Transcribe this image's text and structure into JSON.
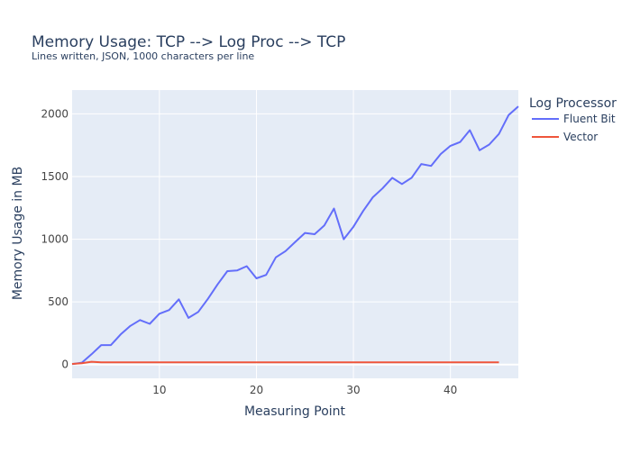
{
  "chart_data": {
    "type": "line",
    "title": "Memory Usage: TCP --> Log Proc --> TCP",
    "subtitle": "Lines written, JSON, 1000 characters per line",
    "xlabel": "Measuring Point",
    "ylabel": "Memory Usage in MB",
    "xlim": [
      1,
      47
    ],
    "ylim": [
      -110,
      2190
    ],
    "x_ticks": [
      10,
      20,
      30,
      40
    ],
    "y_ticks": [
      0,
      500,
      1000,
      1500,
      2000
    ],
    "grid": true,
    "legend": {
      "title": "Log Processor",
      "position": "top-right, outside plot"
    },
    "series": [
      {
        "name": "Fluent Bit",
        "color": "#636efa",
        "x": [
          1,
          2,
          3,
          4,
          5,
          6,
          7,
          8,
          9,
          10,
          11,
          12,
          13,
          14,
          15,
          16,
          17,
          18,
          19,
          20,
          21,
          22,
          23,
          24,
          25,
          26,
          27,
          28,
          29,
          30,
          31,
          32,
          33,
          34,
          35,
          36,
          37,
          38,
          39,
          40,
          41,
          42,
          43,
          44,
          45,
          46,
          47
        ],
        "values": [
          3,
          15,
          82,
          155,
          155,
          240,
          308,
          355,
          325,
          405,
          435,
          520,
          372,
          420,
          525,
          640,
          745,
          750,
          785,
          688,
          715,
          855,
          905,
          978,
          1050,
          1040,
          1110,
          1245,
          1000,
          1100,
          1225,
          1335,
          1405,
          1490,
          1440,
          1490,
          1600,
          1585,
          1680,
          1745,
          1775,
          1870,
          1710,
          1755,
          1840,
          1990,
          2060
        ]
      },
      {
        "name": "Vector",
        "color": "#ef553b",
        "x": [
          1,
          2,
          3,
          4,
          5,
          6,
          7,
          8,
          9,
          10,
          11,
          12,
          13,
          14,
          15,
          16,
          17,
          18,
          19,
          20,
          21,
          22,
          23,
          24,
          25,
          26,
          27,
          28,
          29,
          30,
          31,
          32,
          33,
          34,
          35,
          36,
          37,
          38,
          39,
          40,
          41,
          42,
          43,
          44,
          45
        ],
        "values": [
          5,
          10,
          22,
          17,
          17,
          17,
          17,
          17,
          17,
          17,
          17,
          17,
          17,
          17,
          17,
          17,
          17,
          17,
          17,
          17,
          17,
          17,
          17,
          17,
          17,
          17,
          17,
          17,
          17,
          17,
          17,
          17,
          17,
          17,
          17,
          17,
          17,
          17,
          17,
          17,
          17,
          17,
          17,
          17,
          17
        ]
      }
    ],
    "colors": {
      "plot_background": "#e5ecf6",
      "grid": "#ffffff",
      "text": "#2a3f5f",
      "tick_text": "#444444"
    }
  }
}
